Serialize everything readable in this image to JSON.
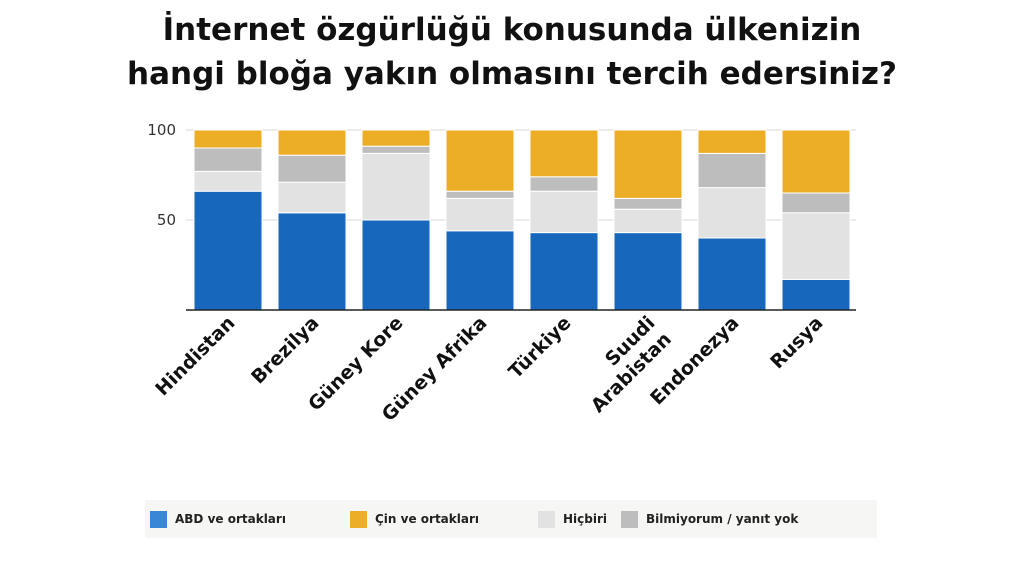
{
  "title_lines": [
    "İnternet özgürlüğü konusunda ülkenizin",
    "hangi bloğa yakın olmasını tercih edersiniz?"
  ],
  "chart_data": {
    "type": "bar",
    "stacked": true,
    "title": "İnternet özgürlüğü konusunda ülkenizin hangi bloğa yakın olmasını tercih edersiniz?",
    "categories": [
      "Hindistan",
      "Brezilya",
      "Güney Kore",
      "Güney Afrika",
      "Türkiye",
      "Suudi Arabistan",
      "Endonezya",
      "Rusya"
    ],
    "category_lines": [
      [
        "Hindistan"
      ],
      [
        "Brezilya"
      ],
      [
        "Güney Kore"
      ],
      [
        "Güney Afrika"
      ],
      [
        "Türkiye"
      ],
      [
        "Suudi",
        "Arabistan"
      ],
      [
        "Endonezya"
      ],
      [
        "Rusya"
      ]
    ],
    "series": [
      {
        "name": "ABD ve ortakları",
        "color": "#1768bd",
        "values": [
          66,
          54,
          50,
          44,
          43,
          43,
          40,
          17
        ]
      },
      {
        "name": "Hiçbiri",
        "color": "#e2e2e2",
        "values": [
          11,
          17,
          37,
          18,
          23,
          13,
          28,
          37
        ]
      },
      {
        "name": "Bilmiyorum / yanıt yok",
        "color": "#bdbdbd",
        "values": [
          13,
          15,
          4,
          4,
          8,
          6,
          19,
          11
        ]
      },
      {
        "name": "Çin ve ortakları",
        "color": "#ecae27",
        "values": [
          10,
          14,
          9,
          34,
          26,
          38,
          13,
          35
        ]
      }
    ],
    "yticks": [
      50,
      100
    ],
    "ylim": [
      0,
      100
    ],
    "grid": true,
    "legend_position": "bottom"
  },
  "legend": [
    {
      "label": "ABD ve ortakları",
      "color": "#3a86d6"
    },
    {
      "label": "Çin ve ortakları",
      "color": "#ecae27"
    },
    {
      "label": "Hiçbiri",
      "color": "#e2e2e2"
    },
    {
      "label": "Bilmiyorum / yanıt yok",
      "color": "#bdbdbd"
    }
  ]
}
